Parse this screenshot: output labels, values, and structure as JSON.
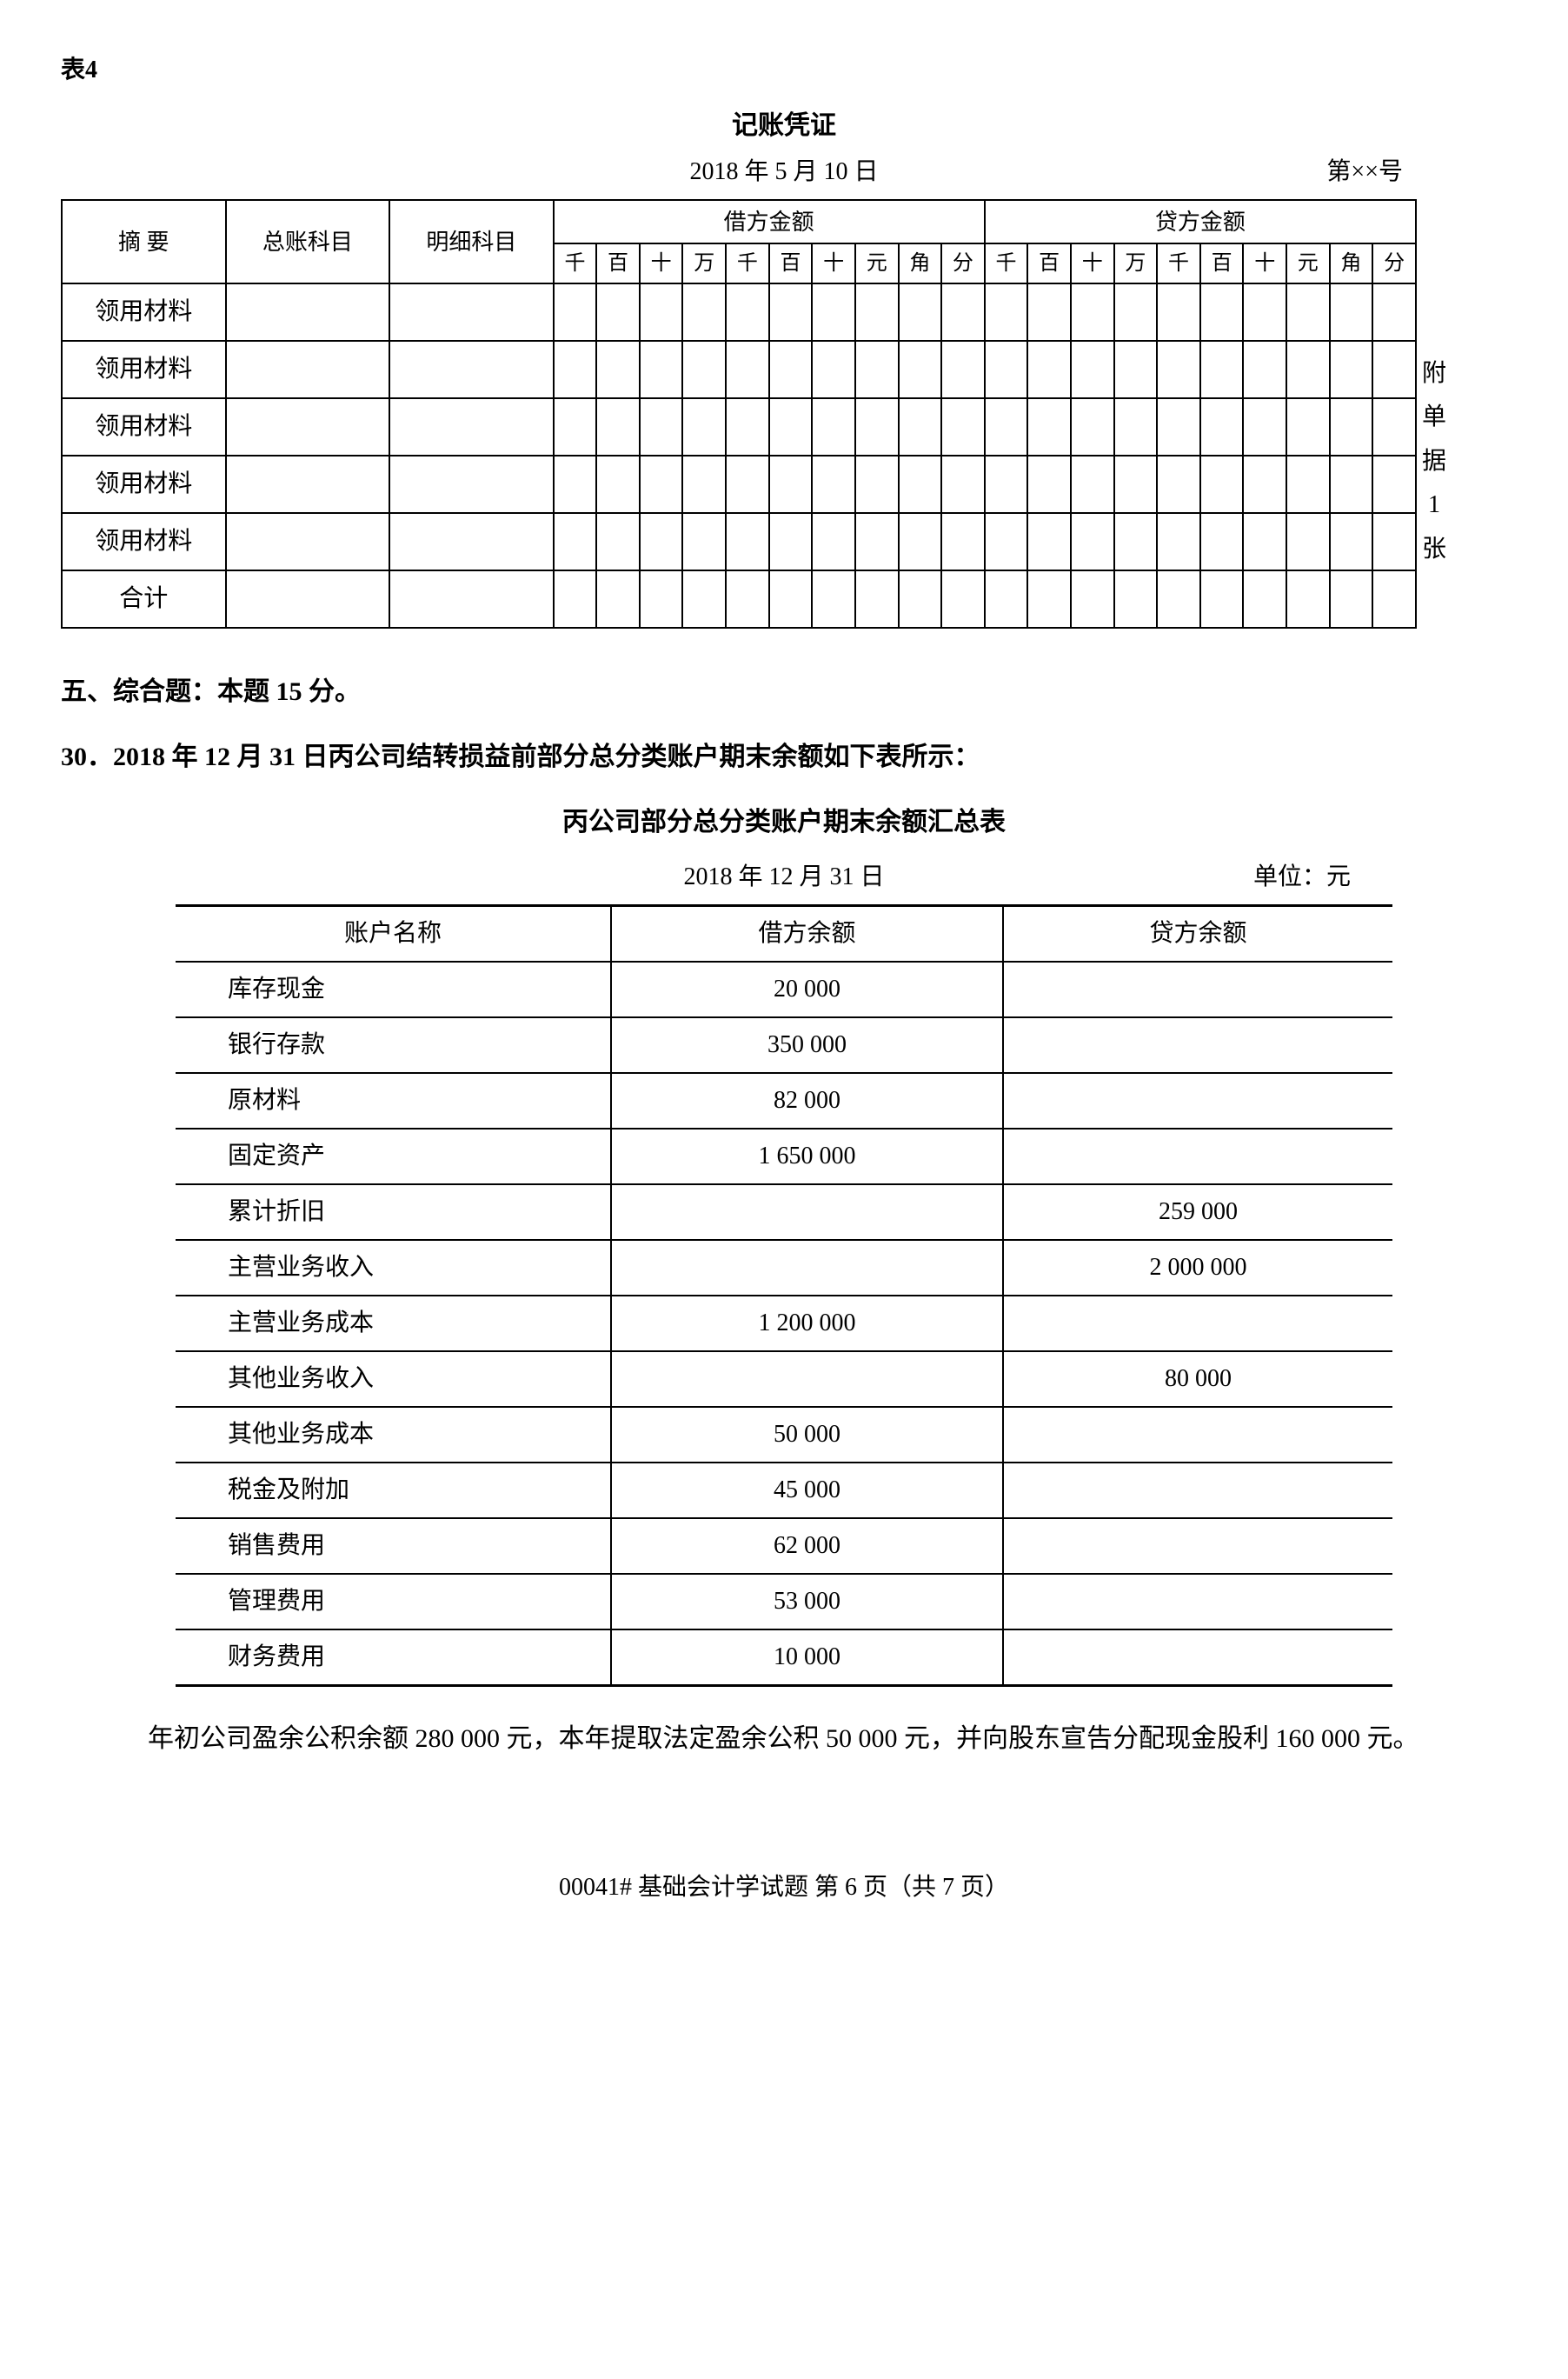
{
  "tableLabel": "表4",
  "voucher": {
    "title": "记账凭证",
    "date": "2018 年 5 月 10 日",
    "number": "第××号",
    "headers": {
      "summary": "摘 要",
      "generalAccount": "总账科目",
      "subAccount": "明细科目",
      "debit": "借方金额",
      "credit": "贷方金额"
    },
    "digits": [
      "千",
      "百",
      "十",
      "万",
      "千",
      "百",
      "十",
      "元",
      "角",
      "分"
    ],
    "rows": [
      "领用材料",
      "领用材料",
      "领用材料",
      "领用材料",
      "领用材料",
      "合计"
    ],
    "attachment": [
      "附",
      "单",
      "据",
      "1",
      "张"
    ]
  },
  "section5": "五、综合题：本题 15 分。",
  "q30": "30．2018 年 12 月 31 日丙公司结转损益前部分总分类账户期末余额如下表所示：",
  "balance": {
    "title": "丙公司部分总分类账户期末余额汇总表",
    "date": "2018 年 12 月 31 日",
    "unit": "单位：元",
    "headers": {
      "name": "账户名称",
      "debit": "借方余额",
      "credit": "贷方余额"
    },
    "rows": [
      {
        "name": "库存现金",
        "debit": "20 000",
        "credit": ""
      },
      {
        "name": "银行存款",
        "debit": "350 000",
        "credit": ""
      },
      {
        "name": "原材料",
        "debit": "82 000",
        "credit": ""
      },
      {
        "name": "固定资产",
        "debit": "1 650 000",
        "credit": ""
      },
      {
        "name": "累计折旧",
        "debit": "",
        "credit": "259 000"
      },
      {
        "name": "主营业务收入",
        "debit": "",
        "credit": "2 000 000"
      },
      {
        "name": "主营业务成本",
        "debit": "1 200 000",
        "credit": ""
      },
      {
        "name": "其他业务收入",
        "debit": "",
        "credit": "80 000"
      },
      {
        "name": "其他业务成本",
        "debit": "50 000",
        "credit": ""
      },
      {
        "name": "税金及附加",
        "debit": "45 000",
        "credit": ""
      },
      {
        "name": "销售费用",
        "debit": "62 000",
        "credit": ""
      },
      {
        "name": "管理费用",
        "debit": "53 000",
        "credit": ""
      },
      {
        "name": "财务费用",
        "debit": "10 000",
        "credit": ""
      }
    ]
  },
  "paragraph": "年初公司盈余公积余额 280 000 元，本年提取法定盈余公积 50 000 元，并向股东宣告分配现金股利 160 000 元。",
  "footer": "00041# 基础会计学试题 第 6 页（共 7 页）"
}
